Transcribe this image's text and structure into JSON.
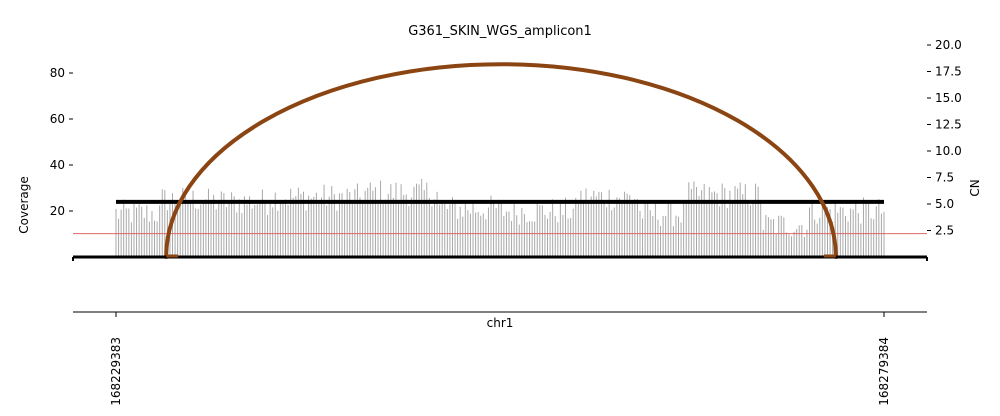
{
  "chart_data": {
    "type": "bar",
    "title": "G361_SKIN_WGS_amplicon1",
    "xlabel": "chr1",
    "ylabel_left": "Coverage",
    "ylabel_right": "CN",
    "x_start": 168229383,
    "x_end": 168279384,
    "x_ticks": [
      "168229383",
      "168279384"
    ],
    "y_left_ticks": [
      20,
      40,
      60,
      80
    ],
    "y_left_lim": [
      0,
      90
    ],
    "y_right_ticks": [
      "2.5",
      "5.0",
      "7.5",
      "10.0",
      "12.5",
      "15.0",
      "17.5",
      "20.0"
    ],
    "y_right_lim": [
      0,
      20
    ],
    "coverage_segments": [
      {
        "from_frac": 0.0,
        "to_frac": 0.06,
        "mean": 19
      },
      {
        "from_frac": 0.06,
        "to_frac": 0.12,
        "mean": 25
      },
      {
        "from_frac": 0.12,
        "to_frac": 0.2,
        "mean": 24
      },
      {
        "from_frac": 0.2,
        "to_frac": 0.32,
        "mean": 26
      },
      {
        "from_frac": 0.32,
        "to_frac": 0.42,
        "mean": 28
      },
      {
        "from_frac": 0.42,
        "to_frac": 0.5,
        "mean": 21
      },
      {
        "from_frac": 0.5,
        "to_frac": 0.6,
        "mean": 20
      },
      {
        "from_frac": 0.6,
        "to_frac": 0.68,
        "mean": 26
      },
      {
        "from_frac": 0.68,
        "to_frac": 0.74,
        "mean": 19
      },
      {
        "from_frac": 0.74,
        "to_frac": 0.84,
        "mean": 27
      },
      {
        "from_frac": 0.84,
        "to_frac": 0.9,
        "mean": 14
      },
      {
        "from_frac": 0.9,
        "to_frac": 1.0,
        "mean": 20
      }
    ],
    "cn_segment": {
      "start": 168229383,
      "end": 168279384,
      "cn": 5.2
    },
    "cn_threshold": 2.2,
    "breakpoint_arc": {
      "start": 168232650,
      "end": 168276250,
      "peak_cn": 18.0
    },
    "colors": {
      "coverage_bars": "#a8a8a8",
      "cn_segment": "#000000",
      "arc": "#8b4513",
      "threshold_line": "#e06666",
      "axes": "#000000"
    },
    "grid": false
  }
}
